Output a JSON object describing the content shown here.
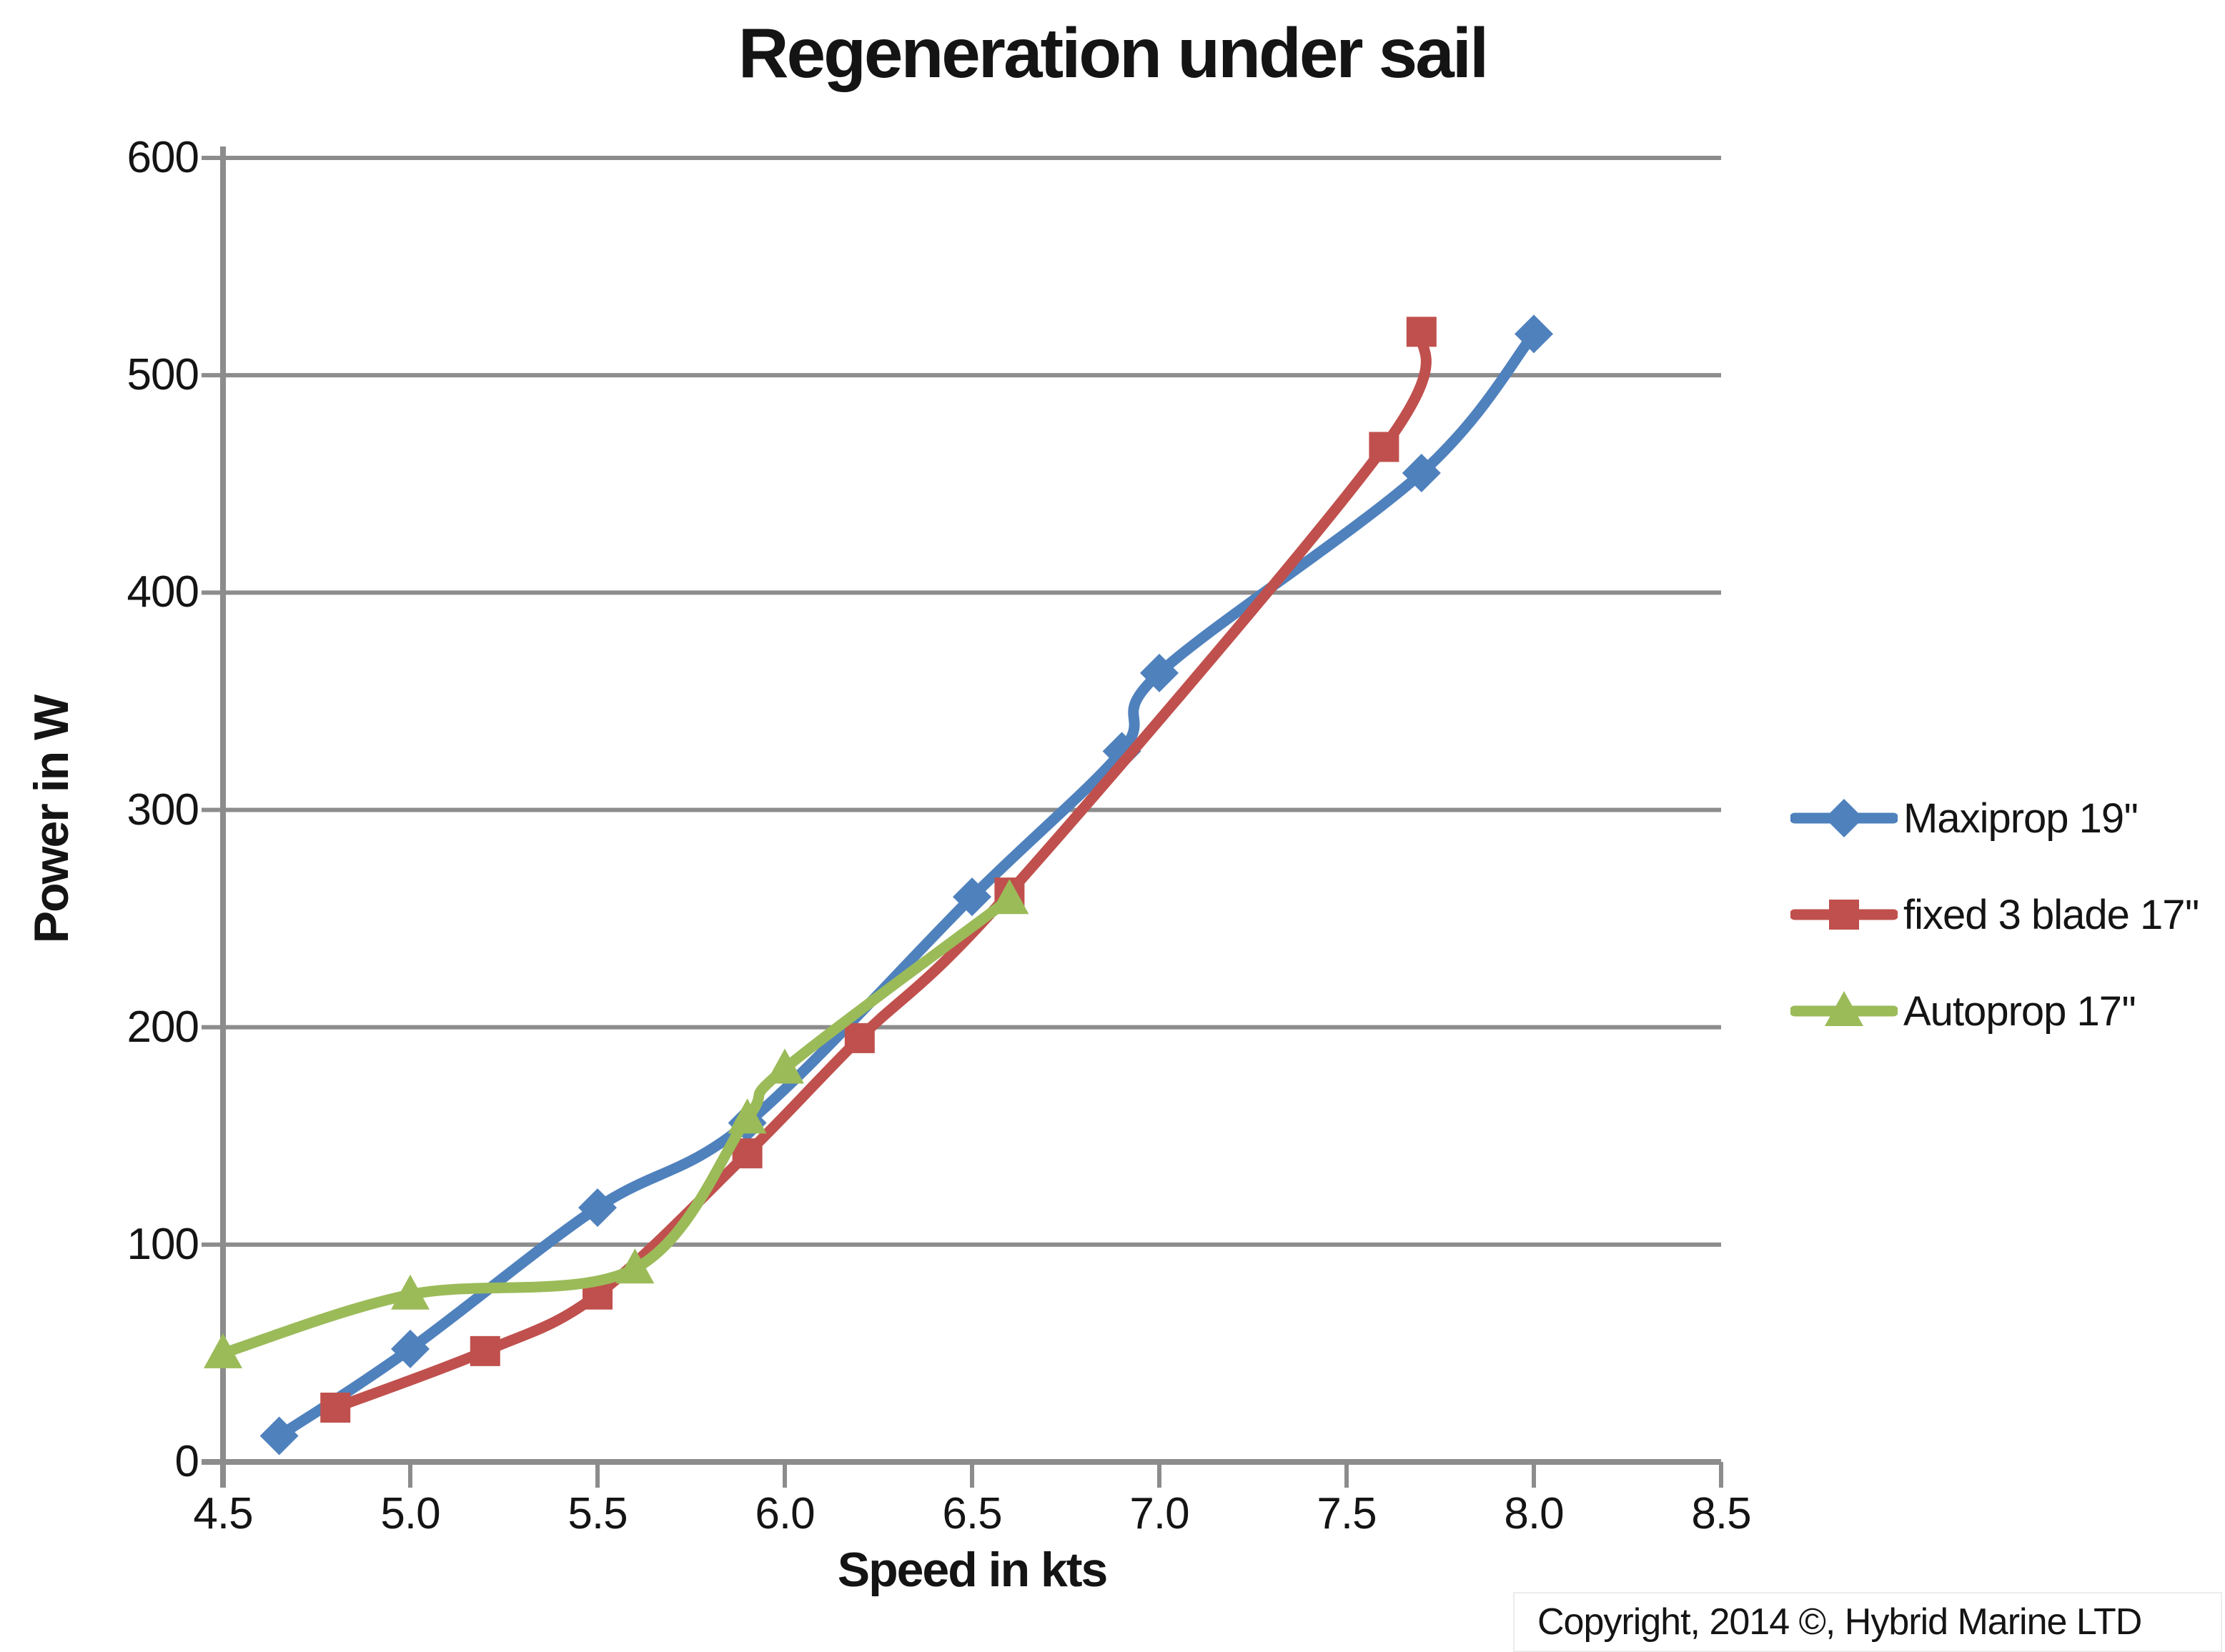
{
  "title": "Regeneration under sail",
  "y_axis": {
    "title": "Power in W",
    "ticks": [
      "600",
      "500",
      "400",
      "300",
      "200",
      "100",
      "0"
    ]
  },
  "x_axis": {
    "title": "Speed in kts",
    "ticks": [
      "4.5",
      "5.0",
      "5.5",
      "6.0",
      "6.5",
      "7.0",
      "7.5",
      "8.0",
      "8.5"
    ]
  },
  "legend": [
    {
      "label": "Maxiprop 19''",
      "color": "#4F81BD",
      "marker": "diamond"
    },
    {
      "label": "fixed 3 blade 17''",
      "color": "#C0504D",
      "marker": "square"
    },
    {
      "label": "Autoprop 17''",
      "color": "#9BBB59",
      "marker": "triangle"
    }
  ],
  "copyright": "Copyright, 2014 ©, Hybrid Marine LTD",
  "colors": {
    "grid": "#8C8C8C",
    "axis": "#8C8C8C",
    "text": "#141414",
    "series_blue": "#4F81BD",
    "series_red": "#C0504D",
    "series_green": "#9BBB59"
  },
  "chart_data": {
    "type": "line",
    "title": "Regeneration under sail",
    "xlabel": "Speed in kts",
    "ylabel": "Power in W",
    "xlim": [
      4.5,
      8.5
    ],
    "ylim": [
      0,
      600
    ],
    "x_tick_step": 0.5,
    "y_tick_step": 100,
    "grid": "horizontal",
    "legend_position": "right",
    "smooth_lines": true,
    "series": [
      {
        "name": "Maxiprop 19''",
        "color": "#4F81BD",
        "marker": "diamond",
        "points": [
          [
            4.65,
            12
          ],
          [
            5.0,
            52
          ],
          [
            5.5,
            117
          ],
          [
            5.9,
            156
          ],
          [
            6.5,
            260
          ],
          [
            6.9,
            327
          ],
          [
            7.0,
            363
          ],
          [
            7.7,
            455
          ],
          [
            8.0,
            519
          ]
        ]
      },
      {
        "name": "fixed 3 blade 17''",
        "color": "#C0504D",
        "marker": "square",
        "points": [
          [
            4.8,
            25
          ],
          [
            5.2,
            51
          ],
          [
            5.5,
            77
          ],
          [
            5.9,
            142
          ],
          [
            6.2,
            195
          ],
          [
            6.6,
            262
          ],
          [
            7.6,
            467
          ],
          [
            7.7,
            520
          ]
        ]
      },
      {
        "name": "Autoprop 17''",
        "color": "#9BBB59",
        "marker": "triangle",
        "points": [
          [
            4.5,
            50
          ],
          [
            5.0,
            77
          ],
          [
            5.6,
            89
          ],
          [
            5.9,
            158
          ],
          [
            6.0,
            181
          ],
          [
            6.6,
            259
          ]
        ]
      }
    ]
  }
}
